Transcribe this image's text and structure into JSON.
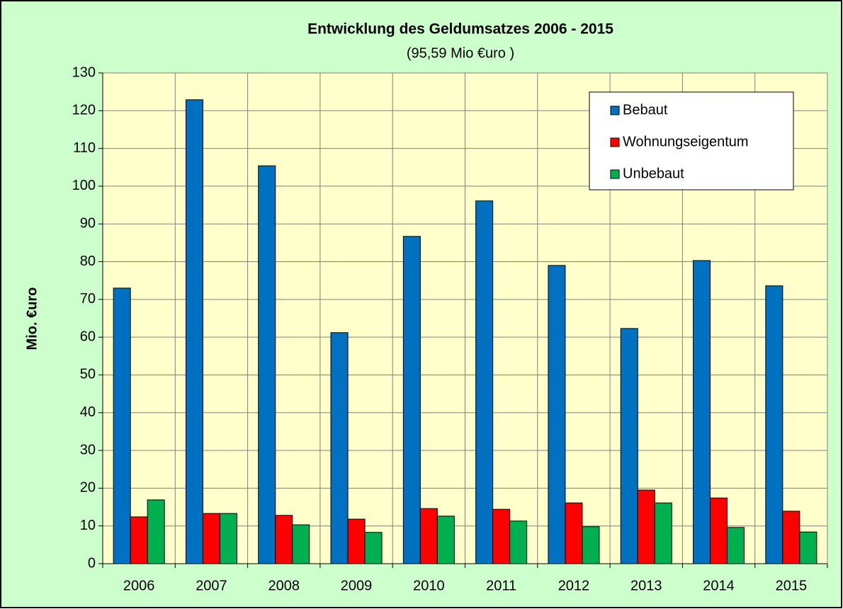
{
  "chart_data": {
    "type": "bar",
    "title": "Entwicklung des Geldumsatzes 2006 - 2015",
    "subtitle": "(95,59 Mio €uro )",
    "y_label": "Mio. €uro",
    "categories": [
      "2006",
      "2007",
      "2008",
      "2009",
      "2010",
      "2011",
      "2012",
      "2013",
      "2014",
      "2015"
    ],
    "series": [
      {
        "name": "Bebaut",
        "color": "#0070c0",
        "values": [
          73.0,
          122.9,
          105.4,
          61.2,
          86.7,
          96.1,
          79.0,
          62.3,
          80.3,
          73.6
        ]
      },
      {
        "name": "Wohnungseigentum",
        "color": "#ff0000",
        "values": [
          12.4,
          13.3,
          12.8,
          11.8,
          14.6,
          14.4,
          16.1,
          19.5,
          17.4,
          13.9
        ]
      },
      {
        "name": "Unbebaut",
        "color": "#00b050",
        "values": [
          16.9,
          13.3,
          10.3,
          8.3,
          12.6,
          11.3,
          9.8,
          16.1,
          9.6,
          8.4
        ]
      }
    ],
    "ylim": [
      0,
      130
    ],
    "yticks": [
      0,
      10,
      20,
      30,
      40,
      50,
      60,
      70,
      80,
      90,
      100,
      110,
      120,
      130
    ],
    "grid": true,
    "legend": "top-right"
  }
}
